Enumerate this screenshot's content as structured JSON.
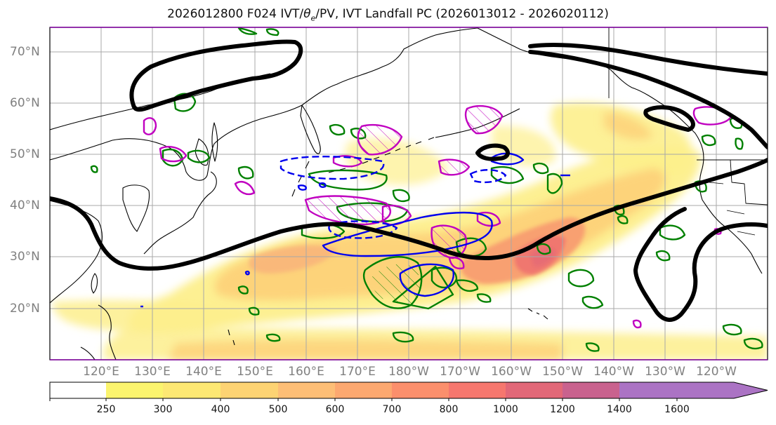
{
  "title": "2026012800 F024 IVT/θe/PV, IVT Landfall PC (2026013012 - 2026020112)",
  "title_parts": {
    "pre": "2026012800 F024 IVT/",
    "theta": "θ",
    "sub": "e",
    "post": "/PV, IVT Landfall PC (2026013012 - 2026020112)"
  },
  "map": {
    "lat_labels": [
      "70°N",
      "60°N",
      "50°N",
      "40°N",
      "30°N",
      "20°N"
    ],
    "lon_labels": [
      "120°E",
      "130°E",
      "140°E",
      "150°E",
      "160°E",
      "170°E",
      "180°W",
      "170°W",
      "160°W",
      "150°W",
      "140°W",
      "130°W",
      "120°W"
    ],
    "lon_range": [
      110,
      250
    ],
    "lat_range": [
      10,
      75
    ]
  },
  "colorbar": {
    "ticks": [
      "250",
      "300",
      "400",
      "500",
      "600",
      "700",
      "800",
      "1000",
      "1200",
      "1400",
      "1600"
    ],
    "colors": [
      "#ffffff",
      "#fbf46e",
      "#fde873",
      "#fdd373",
      "#fdbe76",
      "#fca870",
      "#fb8f6c",
      "#f6776e",
      "#e26878",
      "#c9628e",
      "#ab73c4"
    ],
    "extend": "max"
  },
  "styles": {
    "ivt_light": "#fdef8c",
    "ivt_mid": "#fdcf78",
    "ivt_strong": "#f79a70",
    "ivt_core": "#ef6f6e",
    "pc_line": "#000000",
    "theta_e": "#008000",
    "pv_magenta": "#c000c0",
    "pv_blue": "#0000ee",
    "coast": "#000000",
    "grid": "#a8a8a8"
  }
}
